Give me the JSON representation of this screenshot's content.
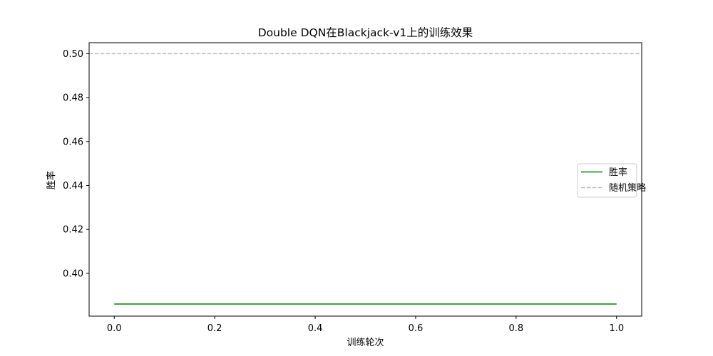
{
  "chart_data": {
    "type": "line",
    "title": "Double DQN在Blackjack-v1上的训练效果",
    "xlabel": "训练轮次",
    "ylabel": "胜率",
    "xlim": [
      -0.05,
      1.05
    ],
    "ylim": [
      0.3805,
      0.505
    ],
    "xticks": [
      0.0,
      0.2,
      0.4,
      0.6,
      0.8,
      1.0
    ],
    "xtick_labels": [
      "0.0",
      "0.2",
      "0.4",
      "0.6",
      "0.8",
      "1.0"
    ],
    "yticks": [
      0.4,
      0.42,
      0.44,
      0.46,
      0.48,
      0.5
    ],
    "ytick_labels": [
      "0.40",
      "0.42",
      "0.44",
      "0.46",
      "0.48",
      "0.50"
    ],
    "grid": false,
    "legend_position": "center-right",
    "series": [
      {
        "name": "胜率",
        "style": "solid",
        "color": "#008000",
        "x": [
          0.0,
          1.0
        ],
        "y": [
          0.386,
          0.386
        ]
      },
      {
        "name": "随机策略",
        "style": "dashed",
        "color": "#bbbbbb",
        "x": [
          -0.05,
          1.05
        ],
        "y": [
          0.5,
          0.5
        ]
      }
    ]
  }
}
